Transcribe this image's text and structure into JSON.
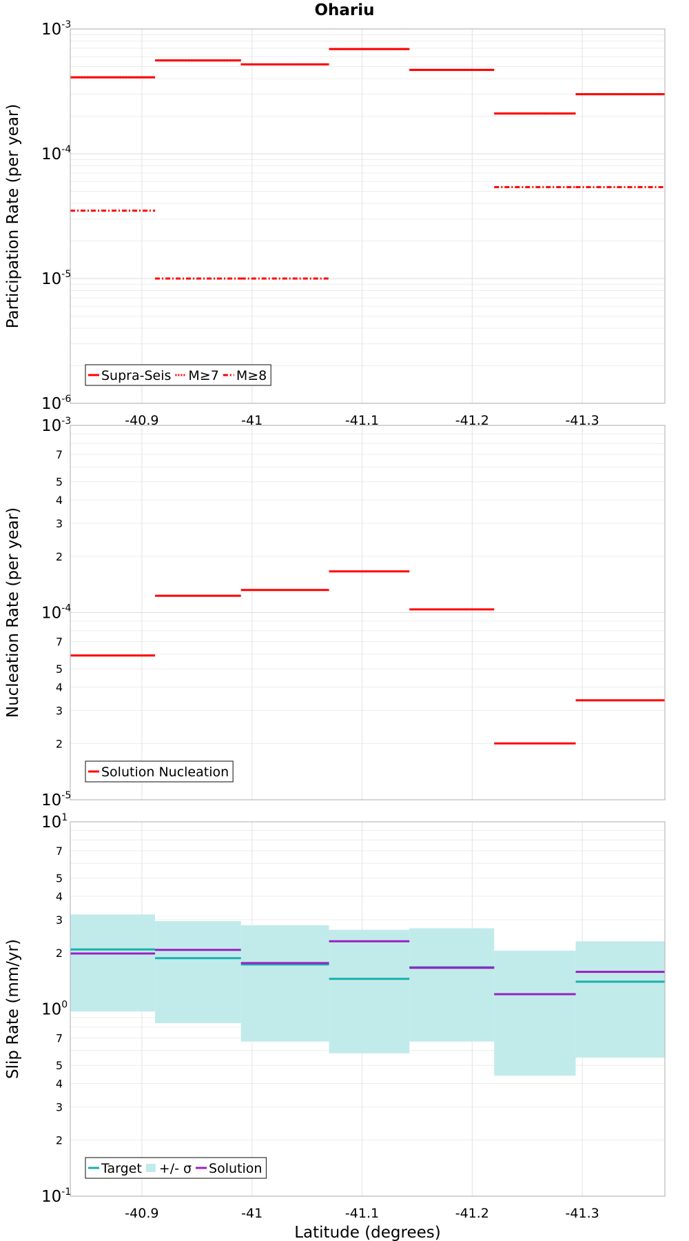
{
  "title": "Ohariu",
  "chart_data": [
    {
      "type": "line",
      "subtype": "step",
      "ylabel": "Participation Rate (per year)",
      "yscale": "log",
      "ylim": [
        1e-06,
        0.001
      ],
      "ytick_labels": [
        {
          "base": "10",
          "exp": "-6"
        },
        {
          "base": "10",
          "exp": "-5"
        },
        {
          "base": "10",
          "exp": "-4"
        },
        {
          "base": "10",
          "exp": "-3"
        }
      ],
      "xlim": [
        -40.835,
        -41.375
      ],
      "xticks": [
        -40.9,
        -41,
        -41.1,
        -41.2,
        -41.3
      ],
      "x_tick_labels": [
        "-40.9",
        "-41",
        "-41.1",
        "-41.2",
        "-41.3"
      ],
      "grid": true,
      "legend": {
        "placement": "bottom-left",
        "labels": [
          "Supra-Seis",
          "M≥7",
          "M≥8"
        ]
      },
      "series": [
        {
          "name": "Supra-Seis",
          "color": "#ff0000",
          "dash": "solid",
          "segments": [
            [
              -40.835,
              -40.912,
              0.00041
            ],
            [
              -40.912,
              -40.99,
              0.00056
            ],
            [
              -40.99,
              -41.07,
              0.00052
            ],
            [
              -41.07,
              -41.143,
              0.00069
            ],
            [
              -41.143,
              -41.22,
              0.00047
            ],
            [
              -41.22,
              -41.294,
              0.00021
            ],
            [
              -41.294,
              -41.375,
              0.0003
            ]
          ]
        },
        {
          "name": "M≥7",
          "color": "#ff0000",
          "dash": "dotted",
          "segments": [
            [
              -40.835,
              -40.912,
              0.00041
            ],
            [
              -40.912,
              -40.99,
              0.00056
            ],
            [
              -40.99,
              -41.07,
              0.00052
            ],
            [
              -41.07,
              -41.143,
              0.00069
            ],
            [
              -41.143,
              -41.22,
              0.00047
            ],
            [
              -41.22,
              -41.294,
              0.00021
            ],
            [
              -41.294,
              -41.375,
              0.0003
            ]
          ]
        },
        {
          "name": "M≥8",
          "color": "#ff0000",
          "dash": "dashdot",
          "segments": [
            [
              -40.835,
              -40.912,
              3.5e-05
            ],
            [
              -40.912,
              -40.99,
              1e-05
            ],
            [
              -40.99,
              -41.07,
              1e-05
            ],
            [
              -41.22,
              -41.294,
              5.4e-05
            ],
            [
              -41.294,
              -41.375,
              5.4e-05
            ]
          ]
        }
      ]
    },
    {
      "type": "line",
      "subtype": "step",
      "ylabel": "Nucleation Rate (per year)",
      "yscale": "log",
      "ylim": [
        1e-05,
        0.001
      ],
      "ytick_labels": [
        {
          "base": "10",
          "exp": "-5"
        },
        {
          "base": "10",
          "exp": "-4"
        },
        {
          "base": "10",
          "exp": "-3"
        }
      ],
      "minor_tick_labels": [
        "2",
        "3",
        "4",
        "5",
        "7"
      ],
      "xlim": [
        -40.835,
        -41.375
      ],
      "xticks": [
        -40.9,
        -41,
        -41.1,
        -41.2,
        -41.3
      ],
      "grid": true,
      "legend": {
        "placement": "bottom-left",
        "labels": [
          "Solution Nucleation"
        ]
      },
      "series": [
        {
          "name": "Solution Nucleation",
          "color": "#ff0000",
          "dash": "solid",
          "segments": [
            [
              -40.835,
              -40.912,
              5.9e-05
            ],
            [
              -40.912,
              -40.99,
              0.000123
            ],
            [
              -40.99,
              -41.07,
              0.000132
            ],
            [
              -41.07,
              -41.143,
              0.000166
            ],
            [
              -41.143,
              -41.22,
              0.000104
            ],
            [
              -41.22,
              -41.294,
              2e-05
            ],
            [
              -41.294,
              -41.375,
              3.4e-05
            ]
          ]
        }
      ]
    },
    {
      "type": "line",
      "subtype": "step",
      "ylabel": "Slip Rate (mm/yr)",
      "xlabel": "Latitude (degrees)",
      "yscale": "log",
      "ylim": [
        0.1,
        10
      ],
      "ytick_labels": [
        {
          "base": "10",
          "exp": "-1"
        },
        {
          "base": "10",
          "exp": "0"
        },
        {
          "base": "10",
          "exp": "1"
        }
      ],
      "minor_tick_labels": [
        "2",
        "3",
        "4",
        "5",
        "7"
      ],
      "xlim": [
        -40.835,
        -41.375
      ],
      "xticks": [
        -40.9,
        -41,
        -41.1,
        -41.2,
        -41.3
      ],
      "x_tick_labels": [
        "-40.9",
        "-41",
        "-41.1",
        "-41.2",
        "-41.3"
      ],
      "grid": true,
      "legend": {
        "placement": "bottom-left",
        "labels": [
          "Target",
          "+/- σ",
          "Solution"
        ]
      },
      "band": {
        "name": "+/- σ",
        "color": "#c1ebea",
        "segments": [
          [
            -40.835,
            -40.912,
            0.97,
            3.2
          ],
          [
            -40.912,
            -40.99,
            0.84,
            2.95
          ],
          [
            -40.99,
            -41.07,
            0.67,
            2.8
          ],
          [
            -41.07,
            -41.143,
            0.58,
            2.65
          ],
          [
            -41.143,
            -41.22,
            0.67,
            2.7
          ],
          [
            -41.22,
            -41.294,
            0.44,
            2.05
          ],
          [
            -41.294,
            -41.375,
            0.55,
            2.3
          ]
        ]
      },
      "series": [
        {
          "name": "Target",
          "color": "#1aaeae",
          "dash": "solid",
          "segments": [
            [
              -40.835,
              -40.912,
              2.08
            ],
            [
              -40.912,
              -40.99,
              1.87
            ],
            [
              -40.99,
              -41.07,
              1.73
            ],
            [
              -41.07,
              -41.143,
              1.45
            ],
            [
              -41.143,
              -41.22,
              1.67
            ],
            [
              -41.22,
              -41.294,
              1.2
            ],
            [
              -41.294,
              -41.375,
              1.4
            ]
          ]
        },
        {
          "name": "Solution",
          "color": "#9b1fc1",
          "dash": "solid",
          "segments": [
            [
              -40.835,
              -40.912,
              1.98
            ],
            [
              -40.912,
              -40.99,
              2.07
            ],
            [
              -40.99,
              -41.07,
              1.76
            ],
            [
              -41.07,
              -41.143,
              2.3
            ],
            [
              -41.143,
              -41.22,
              1.66
            ],
            [
              -41.22,
              -41.294,
              1.2
            ],
            [
              -41.294,
              -41.375,
              1.58
            ]
          ]
        }
      ]
    }
  ]
}
